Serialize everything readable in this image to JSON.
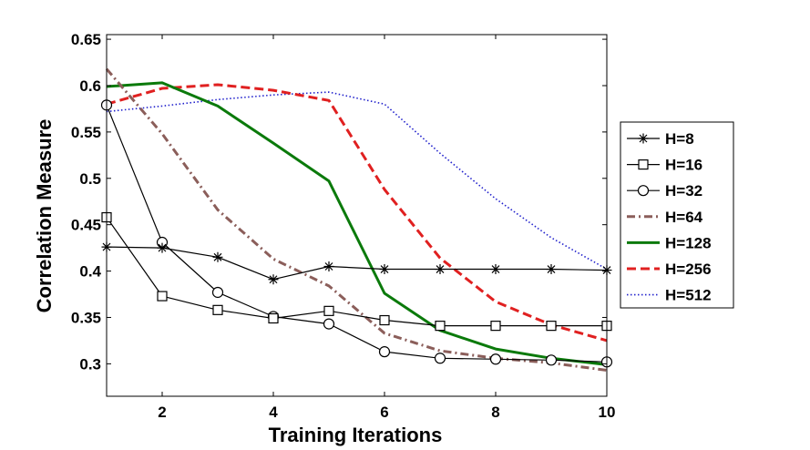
{
  "chart_data": {
    "type": "line",
    "title": "",
    "xlabel": "Training Iterations",
    "ylabel": "Correlation Measure",
    "xlim": [
      1,
      10
    ],
    "ylim": [
      0.265,
      0.655
    ],
    "grid": false,
    "legend_position": "outside-right",
    "x": [
      1,
      2,
      3,
      4,
      5,
      6,
      7,
      8,
      9,
      10
    ],
    "x_ticks": [
      2,
      4,
      6,
      8,
      10
    ],
    "y_ticks": [
      0.3,
      0.35,
      0.4,
      0.45,
      0.5,
      0.55,
      0.6,
      0.65
    ],
    "y_tick_labels": [
      "0.3",
      "0.35",
      "0.4",
      "0.45",
      "0.5",
      "0.55",
      "0.6",
      "0.65"
    ],
    "series": [
      {
        "name": "H=8",
        "color": "#000000",
        "style": "solid",
        "width": 1.2,
        "marker": "asterisk",
        "values": [
          0.426,
          0.425,
          0.415,
          0.391,
          0.405,
          0.402,
          0.402,
          0.402,
          0.402,
          0.401
        ]
      },
      {
        "name": "H=16",
        "color": "#000000",
        "style": "solid",
        "width": 1.2,
        "marker": "square",
        "values": [
          0.458,
          0.373,
          0.358,
          0.349,
          0.357,
          0.347,
          0.341,
          0.341,
          0.341,
          0.341
        ]
      },
      {
        "name": "H=32",
        "color": "#000000",
        "style": "solid",
        "width": 1.2,
        "marker": "circle",
        "values": [
          0.579,
          0.431,
          0.377,
          0.351,
          0.343,
          0.313,
          0.306,
          0.305,
          0.304,
          0.302
        ]
      },
      {
        "name": "H=64",
        "color": "#8B5E5A",
        "style": "dashdot",
        "width": 3,
        "marker": "none",
        "values": [
          0.618,
          0.548,
          0.466,
          0.413,
          0.384,
          0.333,
          0.314,
          0.306,
          0.301,
          0.293
        ]
      },
      {
        "name": "H=128",
        "color": "#0B7A0B",
        "style": "solid",
        "width": 3,
        "marker": "none",
        "values": [
          0.599,
          0.603,
          0.578,
          0.538,
          0.497,
          0.376,
          0.336,
          0.316,
          0.306,
          0.299
        ]
      },
      {
        "name": "H=256",
        "color": "#E02020",
        "style": "dashed",
        "width": 3,
        "marker": "none",
        "values": [
          0.58,
          0.597,
          0.601,
          0.595,
          0.584,
          0.488,
          0.414,
          0.367,
          0.342,
          0.325
        ]
      },
      {
        "name": "H=512",
        "color": "#2020CC",
        "style": "dotted",
        "width": 1.6,
        "marker": "none",
        "values": [
          0.572,
          0.578,
          0.585,
          0.59,
          0.593,
          0.58,
          0.527,
          0.478,
          0.436,
          0.402
        ]
      }
    ]
  }
}
